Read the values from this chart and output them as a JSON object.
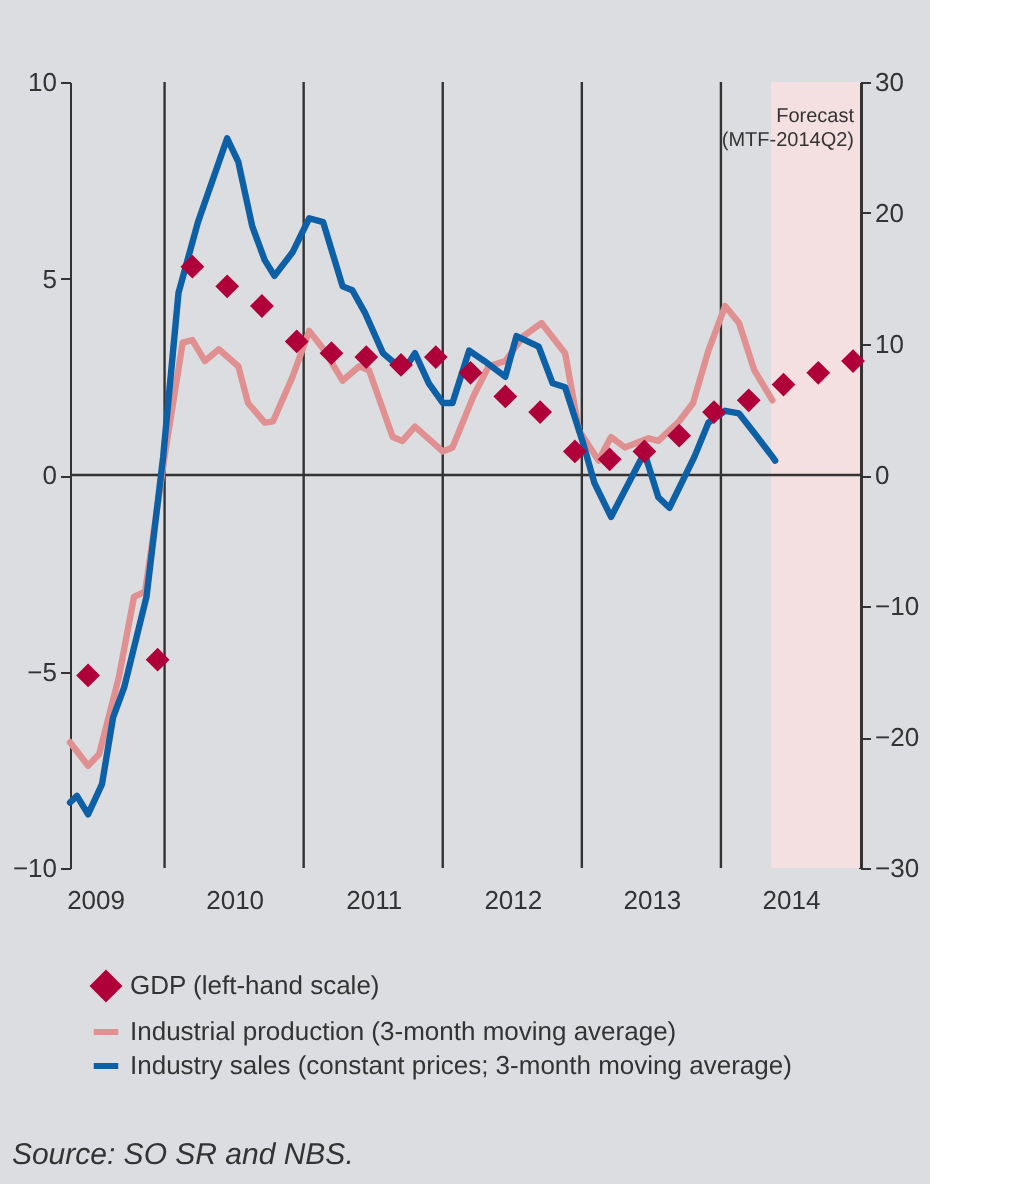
{
  "chart_data": {
    "type": "line",
    "xlim": [
      2009.32,
      2015.0
    ],
    "xticks": [
      {
        "value": 2009.5,
        "label": "2009"
      },
      {
        "value": 2010.5,
        "label": "2010"
      },
      {
        "value": 2011.5,
        "label": "2011"
      },
      {
        "value": 2012.5,
        "label": "2012"
      },
      {
        "value": 2013.5,
        "label": "2013"
      },
      {
        "value": 2014.5,
        "label": "2014"
      }
    ],
    "ylim": [
      -10,
      10
    ],
    "yticks": [
      -10,
      -5,
      0,
      5,
      10
    ],
    "y2lim": [
      -30,
      30
    ],
    "y2ticks": [
      -30,
      -20,
      -10,
      0,
      10,
      20,
      30
    ],
    "legend": "bottom",
    "series": [
      {
        "name": "GDP (left-hand scale)",
        "type": "scatter",
        "marker": "diamond",
        "color": "#b0003a",
        "x": [
          2009.45,
          2009.7,
          2009.95,
          2010.2,
          2010.45,
          2010.7,
          2010.95,
          2011.2,
          2011.45,
          2011.7,
          2011.95,
          2012.2,
          2012.45,
          2012.7,
          2012.95,
          2013.2,
          2013.45,
          2013.7,
          2013.95,
          2014.2,
          2014.45,
          2014.7,
          2014.95
        ],
        "values": [
          -5.1,
          null,
          -4.7,
          5.3,
          4.8,
          4.3,
          3.4,
          3.1,
          3.0,
          2.8,
          3.0,
          2.6,
          2.0,
          1.6,
          0.6,
          0.4,
          0.6,
          1.0,
          1.6,
          1.9,
          2.3,
          2.6,
          2.9
        ]
      },
      {
        "name": "Industrial production (3-month moving average)",
        "axis": "y2",
        "color": "#e09090",
        "x": [
          2009.32,
          2009.45,
          2009.53,
          2009.67,
          2009.78,
          2009.86,
          2010.0,
          2010.13,
          2010.2,
          2010.29,
          2010.39,
          2010.53,
          2010.6,
          2010.72,
          2010.78,
          2010.92,
          2011.04,
          2011.15,
          2011.28,
          2011.4,
          2011.47,
          2011.64,
          2011.71,
          2011.8,
          2012.0,
          2012.07,
          2012.22,
          2012.33,
          2012.45,
          2012.58,
          2012.71,
          2012.88,
          2012.98,
          2013.12,
          2013.21,
          2013.31,
          2013.48,
          2013.55,
          2013.7,
          2013.8,
          2013.91,
          2014.03,
          2014.13,
          2014.24,
          2014.37
        ],
        "values": [
          -20.4,
          -22.2,
          -21.3,
          -15.5,
          -9.3,
          -8.9,
          1.4,
          10.1,
          10.3,
          8.7,
          9.6,
          8.3,
          5.5,
          4.0,
          4.1,
          7.5,
          11.0,
          9.5,
          7.2,
          8.3,
          8.0,
          2.9,
          2.6,
          3.7,
          1.8,
          2.1,
          6.0,
          8.3,
          8.7,
          10.6,
          11.6,
          9.3,
          3.4,
          1.1,
          2.9,
          2.1,
          2.8,
          2.6,
          4.1,
          5.5,
          9.5,
          12.9,
          11.6,
          8.0,
          5.7
        ]
      },
      {
        "name": "Industry sales (constant prices; 3-month moving average)",
        "axis": "y2",
        "color": "#0d5fa6",
        "x": [
          2009.32,
          2009.37,
          2009.45,
          2009.55,
          2009.63,
          2009.71,
          2009.87,
          2009.99,
          2010.1,
          2010.24,
          2010.45,
          2010.53,
          2010.63,
          2010.72,
          2010.79,
          2010.92,
          2011.04,
          2011.14,
          2011.28,
          2011.35,
          2011.44,
          2011.57,
          2011.68,
          2011.74,
          2011.8,
          2011.9,
          2012.0,
          2012.07,
          2012.19,
          2012.3,
          2012.45,
          2012.53,
          2012.69,
          2012.79,
          2012.88,
          2013.01,
          2013.09,
          2013.21,
          2013.45,
          2013.55,
          2013.63,
          2013.81,
          2013.91,
          2014.03,
          2014.13,
          2014.24,
          2014.37,
          2014.39
        ],
        "values": [
          -25.0,
          -24.5,
          -25.9,
          -23.6,
          -18.5,
          -16.2,
          -9.3,
          1.4,
          13.9,
          19.3,
          25.7,
          23.9,
          19.0,
          16.4,
          15.2,
          17.0,
          19.6,
          19.3,
          14.4,
          14.1,
          12.4,
          9.3,
          8.3,
          8.3,
          9.3,
          7.0,
          5.5,
          5.5,
          9.5,
          8.7,
          7.5,
          10.6,
          9.8,
          7.0,
          6.7,
          2.4,
          -0.6,
          -3.2,
          1.7,
          -1.7,
          -2.5,
          1.4,
          4.0,
          4.9,
          4.7,
          3.2,
          1.4,
          1.1
        ]
      }
    ],
    "bands": [
      {
        "axis": "x",
        "from": 2014.36,
        "to": 2015.0,
        "label": "Forecast\n(MTF-2014Q2)",
        "color": "#f4e0e0"
      }
    ],
    "ref_lines": [
      {
        "axis": "x",
        "value": 2010,
        "color": "#333333"
      },
      {
        "axis": "x",
        "value": 2011,
        "color": "#333333"
      },
      {
        "axis": "x",
        "value": 2012,
        "color": "#333333"
      },
      {
        "axis": "x",
        "value": 2013,
        "color": "#333333"
      },
      {
        "axis": "x",
        "value": 2014,
        "color": "#333333"
      },
      {
        "axis": "y",
        "value": 0,
        "color": "#333333"
      }
    ],
    "annotations": [
      "Source: SO SR and NBS."
    ]
  }
}
